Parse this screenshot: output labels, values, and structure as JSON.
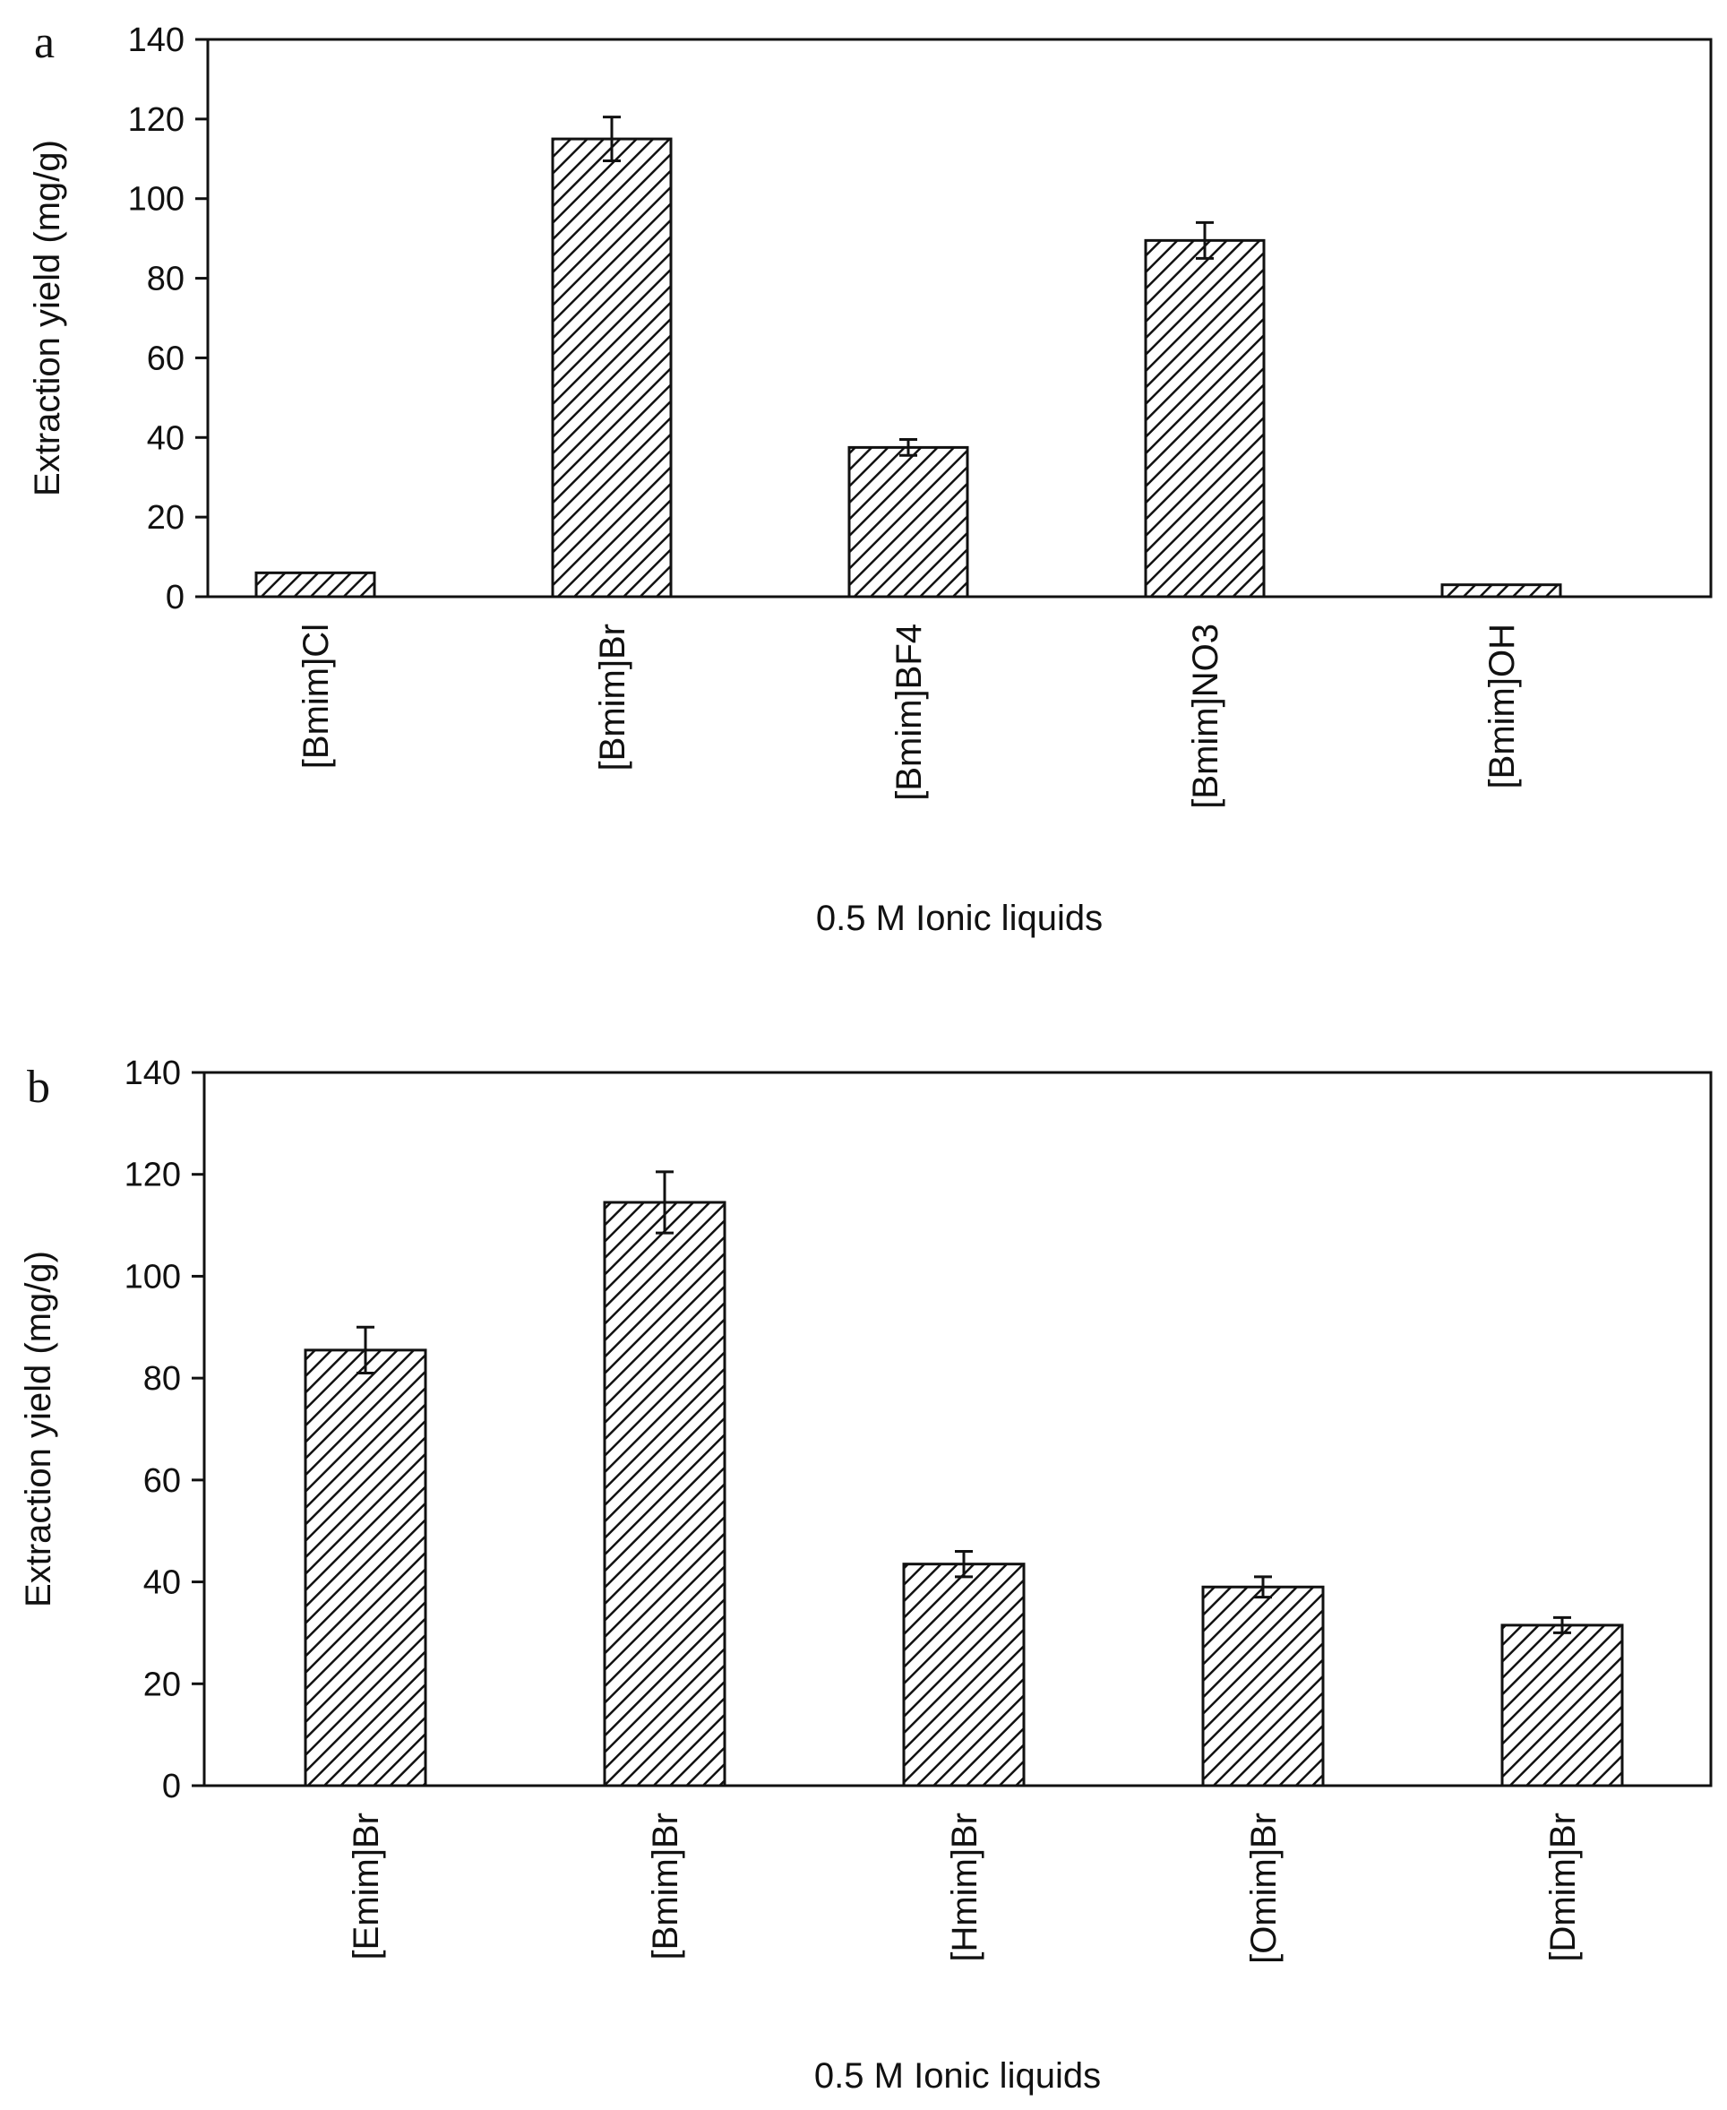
{
  "chart_data": [
    {
      "panel_label": "a",
      "type": "bar",
      "title": "",
      "xlabel": "0.5 M Ionic liquids",
      "ylabel": "Extraction yield (mg/g)",
      "ylim": [
        0,
        140
      ],
      "yticks": [
        0,
        20,
        40,
        60,
        80,
        100,
        120,
        140
      ],
      "grid": false,
      "categories": [
        "[Bmim]Cl",
        "[Bmim]Br",
        "[Bmim]BF4",
        "[Bmim]NO3",
        "[Bmim]OH"
      ],
      "values": [
        6,
        115,
        37.5,
        89.5,
        3
      ],
      "errors": [
        0,
        5.5,
        2,
        4.5,
        0
      ],
      "bar_fill": "diagonal hatch",
      "colors": {
        "bar_stroke": "#111111",
        "hatch": "#111111",
        "background": "#ffffff"
      }
    },
    {
      "panel_label": "b",
      "type": "bar",
      "title": "",
      "xlabel": "0.5 M Ionic liquids",
      "ylabel": "Extraction yield (mg/g)",
      "ylim": [
        0,
        140
      ],
      "yticks": [
        0,
        20,
        40,
        60,
        80,
        100,
        120,
        140
      ],
      "grid": false,
      "categories": [
        "[Emim]Br",
        "[Bmim]Br",
        "[Hmim]Br",
        "[Omim]Br",
        "[Dmim]Br"
      ],
      "values": [
        85.5,
        114.5,
        43.5,
        39,
        31.5
      ],
      "errors": [
        4.5,
        6,
        2.5,
        2,
        1.5
      ],
      "bar_fill": "diagonal hatch",
      "colors": {
        "bar_stroke": "#111111",
        "hatch": "#111111",
        "background": "#ffffff"
      }
    }
  ]
}
